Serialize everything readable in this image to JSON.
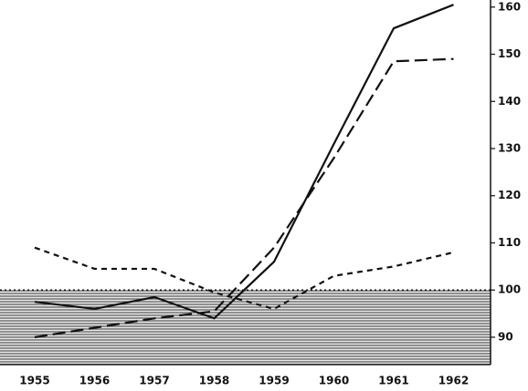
{
  "chart_data": {
    "type": "line",
    "categories": [
      "1955",
      "1956",
      "1957",
      "1958",
      "1959",
      "1960",
      "1961",
      "1962"
    ],
    "series": [
      {
        "style": "solid",
        "color": "#111111",
        "values": [
          97.5,
          96,
          98.5,
          94,
          106,
          131,
          155.5,
          160.5
        ]
      },
      {
        "style": "long-dash",
        "color": "#111111",
        "values": [
          90,
          92,
          94,
          95.5,
          109,
          128,
          148.5,
          149
        ]
      },
      {
        "style": "short-dash",
        "color": "#111111",
        "values": [
          109,
          104.5,
          104.5,
          99.5,
          96,
          103,
          105,
          108
        ]
      }
    ],
    "ylim": [
      84.2,
      161.5
    ],
    "yticks": [
      90,
      100,
      110,
      120,
      130,
      140,
      150,
      160
    ],
    "y_axis_side": "right",
    "shade_below": 100
  }
}
